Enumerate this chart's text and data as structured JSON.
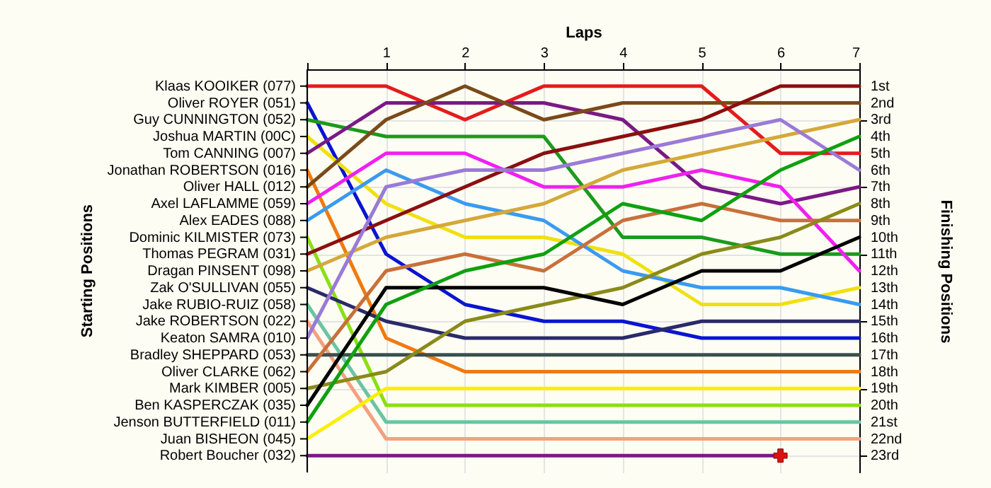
{
  "chart_data": {
    "type": "line",
    "xlabel": "Laps",
    "y2label": "Finishing Positions",
    "x": [
      0,
      1,
      2,
      3,
      4,
      5,
      6,
      7
    ],
    "xlim": [
      0,
      7
    ],
    "xticks": [
      {
        "value": 0,
        "label": null
      },
      1,
      2,
      3,
      4,
      5,
      6,
      7
    ],
    "y2lim": [
      24,
      0
    ],
    "y2ticks": [
      {
        "value": 1,
        "label": "1st"
      },
      {
        "value": 2,
        "label": "2nd"
      },
      {
        "value": 3,
        "label": "3rd"
      },
      {
        "value": 4,
        "label": "4th"
      },
      {
        "value": 5,
        "label": "5th"
      },
      {
        "value": 6,
        "label": "6th"
      },
      {
        "value": 7,
        "label": "7th"
      },
      {
        "value": 8,
        "label": "8th"
      },
      {
        "value": 9,
        "label": "9th"
      },
      {
        "value": 10,
        "label": "10th"
      },
      {
        "value": 11,
        "label": "11th"
      },
      {
        "value": 12,
        "label": "12th"
      },
      {
        "value": 13,
        "label": "13th"
      },
      {
        "value": 14,
        "label": "14th"
      },
      {
        "value": 15,
        "label": "15th"
      },
      {
        "value": 16,
        "label": "16th"
      },
      {
        "value": 17,
        "label": "17th"
      },
      {
        "value": 18,
        "label": "18th"
      },
      {
        "value": 19,
        "label": "19th"
      },
      {
        "value": 20,
        "label": "20th"
      },
      {
        "value": 21,
        "label": "21st"
      },
      {
        "value": 22,
        "label": "22nd"
      },
      {
        "value": 23,
        "label": "23rd"
      }
    ],
    "annotations": [
      "Klaas KOOIKER (077)",
      "Oliver ROYER (051)",
      "Guy CUNNINGTON (052)",
      "Joshua MARTIN (00C)",
      "Tom CANNING (007)",
      "Jonathan ROBERTSON (016)",
      "Oliver HALL (012)",
      "Axel LAFLAMME (059)",
      "Alex EADES (088)",
      "Dominic KILMISTER (073)",
      "Thomas PEGRAM (031)",
      "Dragan PINSENT (098)",
      "Zak O'SULLIVAN (055)",
      "Jake RUBIO-RUIZ (058)",
      "Jake ROBERTSON (022)",
      "Keaton SAMRA (010)",
      "Bradley SHEPPARD (053)",
      "Oliver CLARKE (062)",
      "Mark KIMBER (005)",
      "Ben KASPERCZAK (035)",
      "Jenson BUTTERFIELD (011)",
      "Juan BISHEON (045)",
      "Robert Boucher (032)",
      "Starting Positions"
    ],
    "grid": true,
    "line_style": "solid",
    "marker": "none",
    "series": [
      {
        "color": "#e41c1c",
        "axis": "y2",
        "values": [
          1,
          1,
          3,
          1,
          1,
          1,
          5,
          5
        ]
      },
      {
        "color": "#0a14d2",
        "axis": "y2",
        "values": [
          2,
          11,
          14,
          15,
          15,
          16,
          16,
          16
        ]
      },
      {
        "color": "#1c9a1c",
        "axis": "y2",
        "values": [
          3,
          4,
          4,
          4,
          10,
          10,
          11,
          11
        ]
      },
      {
        "color": "#f0e010",
        "axis": "y2",
        "values": [
          4,
          8,
          10,
          10,
          11,
          14,
          14,
          13
        ]
      },
      {
        "color": "#7a1a84",
        "axis": "y2",
        "values": [
          5,
          2,
          2,
          2,
          3,
          7,
          8,
          7
        ]
      },
      {
        "color": "#f07a10",
        "axis": "y2",
        "values": [
          6,
          16,
          18,
          18,
          18,
          18,
          18,
          18
        ]
      },
      {
        "color": "#7a4a1a",
        "axis": "y2",
        "values": [
          7,
          3,
          1,
          3,
          2,
          2,
          2,
          2
        ]
      },
      {
        "color": "#f020f0",
        "axis": "y2",
        "values": [
          8,
          5,
          5,
          7,
          7,
          6,
          7,
          12
        ]
      },
      {
        "color": "#3a9af0",
        "axis": "y2",
        "values": [
          9,
          6,
          8,
          9,
          12,
          13,
          13,
          14
        ]
      },
      {
        "color": "#8ae010",
        "axis": "y2",
        "values": [
          10,
          20,
          20,
          20,
          20,
          20,
          20,
          20
        ]
      },
      {
        "color": "#8a1010",
        "axis": "y2",
        "values": [
          11,
          9,
          7,
          5,
          4,
          3,
          1,
          1
        ]
      },
      {
        "color": "#d4a83a",
        "axis": "y2",
        "values": [
          12,
          10,
          9,
          8,
          6,
          5,
          4,
          3
        ]
      },
      {
        "color": "#2a2a6a",
        "axis": "y2",
        "values": [
          13,
          15,
          16,
          16,
          16,
          15,
          15,
          15
        ]
      },
      {
        "color": "#6ac4a4",
        "axis": "y2",
        "values": [
          14,
          21,
          21,
          21,
          21,
          21,
          21,
          21
        ]
      },
      {
        "color": "#f4a080",
        "axis": "y2",
        "values": [
          15,
          22,
          22,
          22,
          22,
          22,
          22,
          22
        ]
      },
      {
        "color": "#9a7ad8",
        "axis": "y2",
        "values": [
          16,
          7,
          6,
          6,
          5,
          4,
          3,
          6
        ]
      },
      {
        "color": "#3a5050",
        "axis": "y2",
        "values": [
          17,
          17,
          17,
          17,
          17,
          17,
          17,
          17
        ]
      },
      {
        "color": "#c8703a",
        "axis": "y2",
        "values": [
          18,
          12,
          11,
          12,
          9,
          8,
          9,
          9
        ]
      },
      {
        "color": "#8a8a1a",
        "axis": "y2",
        "values": [
          19,
          18,
          15,
          14,
          13,
          11,
          10,
          8
        ]
      },
      {
        "color": "#000000",
        "axis": "y2",
        "values": [
          20,
          13,
          13,
          13,
          14,
          12,
          12,
          10
        ]
      },
      {
        "color": "#10a010",
        "axis": "y2",
        "values": [
          21,
          14,
          12,
          11,
          8,
          9,
          6,
          4
        ]
      },
      {
        "color": "#f8f000",
        "axis": "y2",
        "values": [
          22,
          19,
          19,
          19,
          19,
          19,
          19,
          19
        ]
      },
      {
        "color": "#7a1a84",
        "axis": "y2",
        "values": [
          23,
          23,
          23,
          23,
          23,
          23,
          23,
          null
        ]
      },
      {
        "type": "scatter",
        "axis": "y2",
        "marker": "cross",
        "color": "#e01010",
        "x": [
          6
        ],
        "values": [
          23
        ]
      }
    ]
  }
}
